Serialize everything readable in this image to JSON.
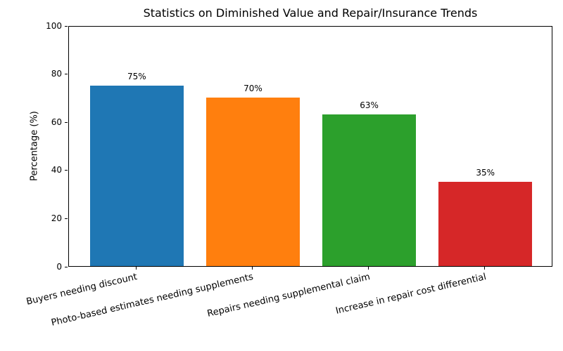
{
  "chart_data": {
    "type": "bar",
    "title": "Statistics on Diminished Value and Repair/Insurance Trends",
    "xlabel": "",
    "ylabel": "Percentage (%)",
    "categories": [
      "Buyers needing discount",
      "Photo-based estimates needing supplements",
      "Repairs needing supplemental claim",
      "Increase in repair cost differential"
    ],
    "values": [
      75,
      70,
      63,
      35
    ],
    "bar_labels": [
      "75%",
      "70%",
      "63%",
      "35%"
    ],
    "bar_colors": [
      "#1f77b4",
      "#ff7f0e",
      "#2ca02c",
      "#d62728"
    ],
    "ylim": [
      0,
      100
    ],
    "yticks": [
      0,
      20,
      40,
      60,
      80,
      100
    ],
    "grid": false,
    "legend": "none",
    "axis_color": "#000000",
    "text_color": "#000000",
    "background_color": "#ffffff",
    "xtick_rotation_deg": 13
  }
}
